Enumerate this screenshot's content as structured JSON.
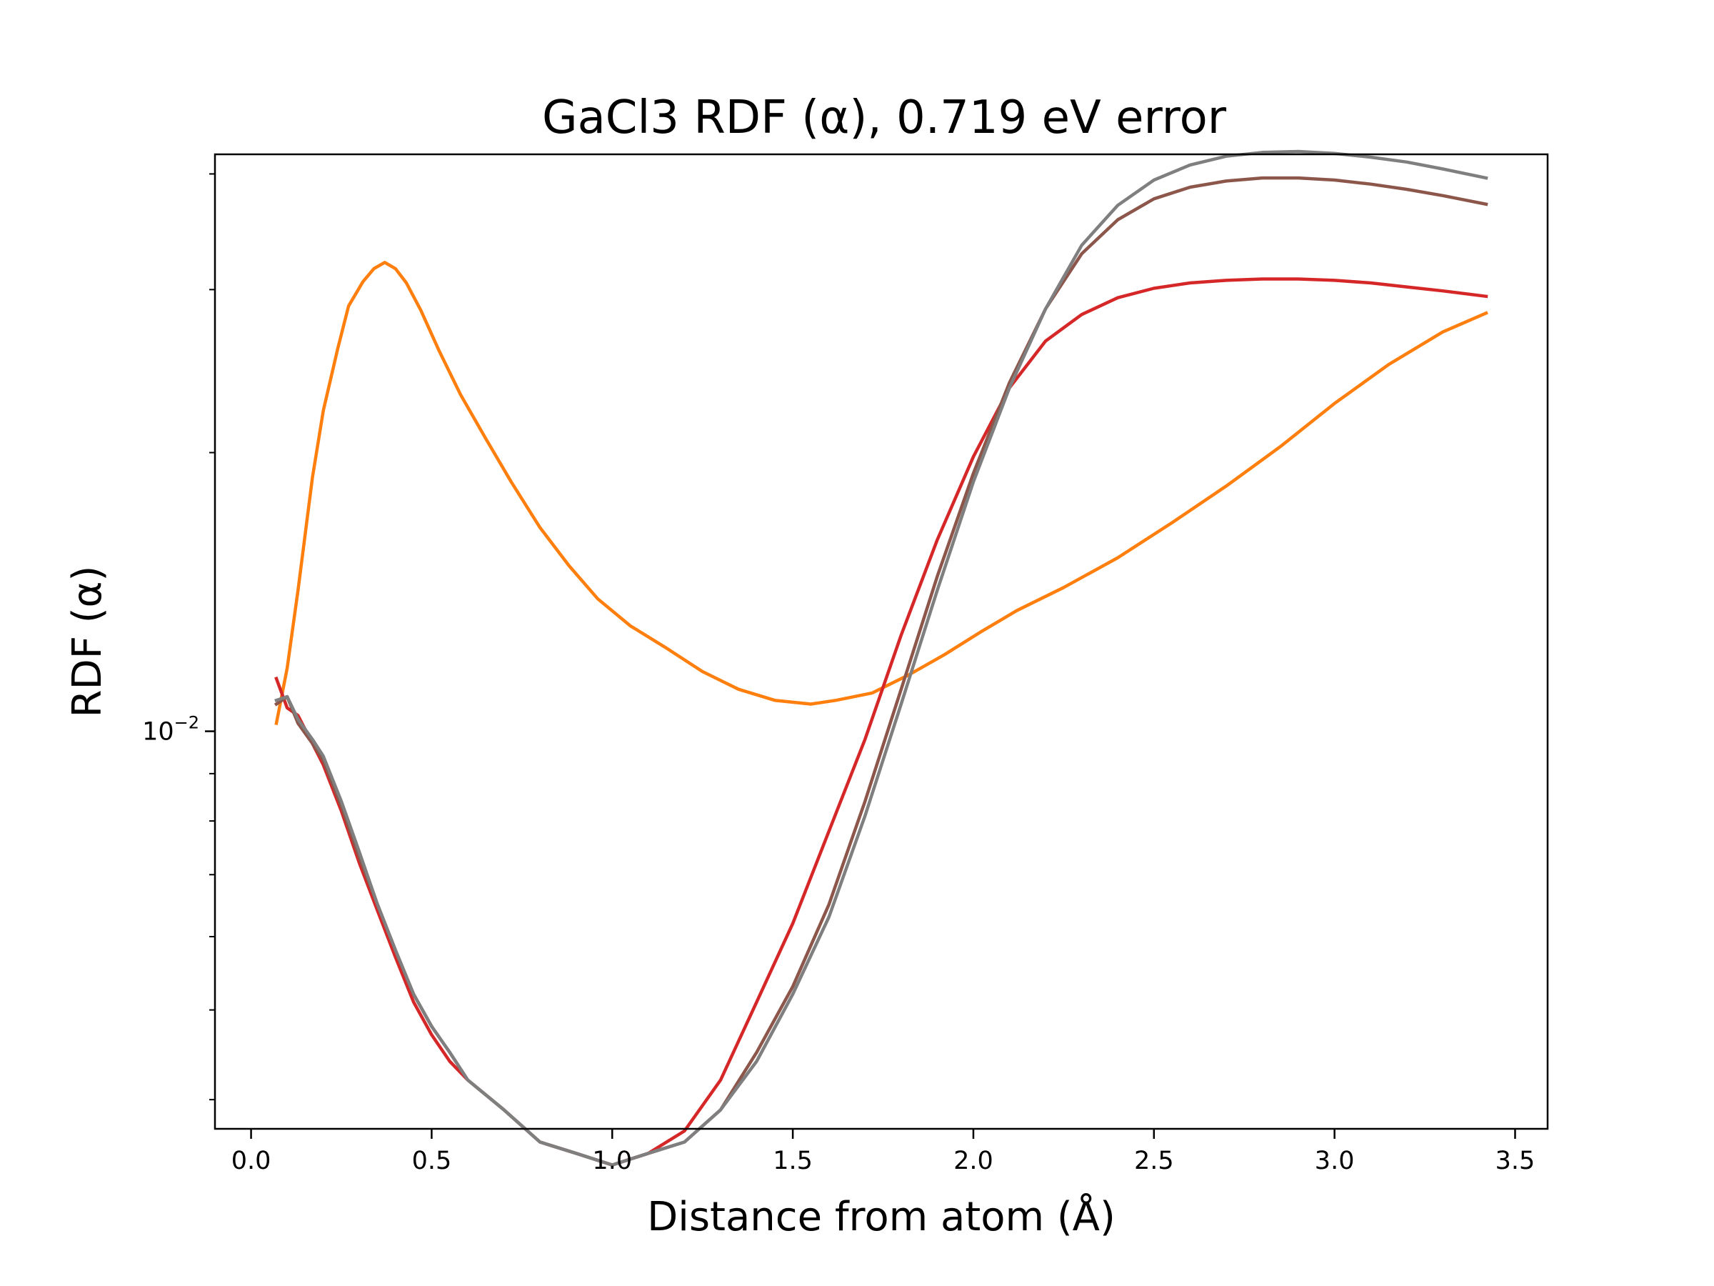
{
  "chart_data": {
    "type": "line",
    "title": "GaCl3 RDF (α), 0.719 eV error",
    "xlabel": "Distance from atom (Å)",
    "ylabel": "RDF (α)",
    "xlim": [
      -0.1,
      3.59
    ],
    "ylim": [
      0.00372,
      0.042
    ],
    "yscale": "log",
    "grid": false,
    "xticks": [
      {
        "value": 0.0,
        "label": "0.0"
      },
      {
        "value": 0.5,
        "label": "0.5"
      },
      {
        "value": 1.0,
        "label": "1.0"
      },
      {
        "value": 1.5,
        "label": "1.5"
      },
      {
        "value": 2.0,
        "label": "2.0"
      },
      {
        "value": 2.5,
        "label": "2.5"
      },
      {
        "value": 3.0,
        "label": "3.0"
      },
      {
        "value": 3.5,
        "label": "3.5"
      }
    ],
    "yticks_major": [
      {
        "value": 0.01,
        "base": "10",
        "exp": "−2"
      }
    ],
    "yticks_minor": [
      0.004,
      0.005,
      0.006,
      0.007,
      0.008,
      0.009,
      0.02,
      0.03,
      0.04
    ],
    "series": [
      {
        "color": "#ff7f0e",
        "x": [
          0.07,
          0.1,
          0.13,
          0.17,
          0.2,
          0.24,
          0.27,
          0.31,
          0.34,
          0.37,
          0.4,
          0.43,
          0.47,
          0.52,
          0.58,
          0.65,
          0.72,
          0.8,
          0.88,
          0.96,
          1.05,
          1.15,
          1.25,
          1.35,
          1.45,
          1.55,
          1.62,
          1.72,
          1.82,
          1.92,
          2.02,
          2.12,
          2.25,
          2.4,
          2.55,
          2.7,
          2.85,
          3.0,
          3.15,
          3.3,
          3.42
        ],
        "y": [
          0.0102,
          0.0117,
          0.0142,
          0.0188,
          0.0222,
          0.0259,
          0.0288,
          0.0306,
          0.0316,
          0.0321,
          0.0316,
          0.0305,
          0.0285,
          0.0258,
          0.0231,
          0.0207,
          0.0186,
          0.0166,
          0.0151,
          0.0139,
          0.013,
          0.0123,
          0.0116,
          0.0111,
          0.0108,
          0.0107,
          0.0108,
          0.011,
          0.0115,
          0.0121,
          0.0128,
          0.0135,
          0.0143,
          0.0154,
          0.0168,
          0.0184,
          0.0203,
          0.0226,
          0.0249,
          0.027,
          0.0283
        ]
      },
      {
        "color": "#d62728",
        "x": [
          0.07,
          0.1,
          0.13,
          0.17,
          0.2,
          0.25,
          0.3,
          0.35,
          0.4,
          0.45,
          0.5,
          0.55,
          0.6,
          0.7,
          0.8,
          0.9,
          1.0,
          1.1,
          1.2,
          1.3,
          1.4,
          1.5,
          1.6,
          1.7,
          1.8,
          1.9,
          2.0,
          2.1,
          2.2,
          2.3,
          2.4,
          2.5,
          2.6,
          2.7,
          2.8,
          2.9,
          3.0,
          3.1,
          3.2,
          3.3,
          3.42
        ],
        "y": [
          0.0114,
          0.0106,
          0.0104,
          0.0097,
          0.0092,
          0.0082,
          0.0072,
          0.0064,
          0.0057,
          0.0051,
          0.0047,
          0.0044,
          0.0042,
          0.0039,
          0.0036,
          0.0035,
          0.0034,
          0.0035,
          0.0037,
          0.0042,
          0.0051,
          0.0062,
          0.0078,
          0.0098,
          0.0127,
          0.0161,
          0.0198,
          0.0235,
          0.0264,
          0.0282,
          0.0294,
          0.0301,
          0.0305,
          0.0307,
          0.0308,
          0.0308,
          0.0307,
          0.0305,
          0.0302,
          0.0299,
          0.0295
        ]
      },
      {
        "color": "#8c564b",
        "x": [
          0.07,
          0.1,
          0.13,
          0.17,
          0.2,
          0.25,
          0.3,
          0.35,
          0.4,
          0.45,
          0.5,
          0.55,
          0.6,
          0.7,
          0.8,
          0.9,
          1.0,
          1.1,
          1.2,
          1.3,
          1.4,
          1.5,
          1.6,
          1.7,
          1.8,
          1.9,
          2.0,
          2.1,
          2.2,
          2.3,
          2.4,
          2.5,
          2.6,
          2.7,
          2.8,
          2.9,
          3.0,
          3.1,
          3.2,
          3.3,
          3.42
        ],
        "y": [
          0.0107,
          0.0109,
          0.0102,
          0.0097,
          0.0093,
          0.0083,
          0.0073,
          0.0065,
          0.0058,
          0.0052,
          0.0048,
          0.0045,
          0.0042,
          0.0039,
          0.0036,
          0.0035,
          0.0034,
          0.0035,
          0.0036,
          0.0039,
          0.0045,
          0.0053,
          0.0065,
          0.0084,
          0.0111,
          0.0147,
          0.019,
          0.0238,
          0.0286,
          0.0328,
          0.0357,
          0.0376,
          0.0387,
          0.0393,
          0.0396,
          0.0396,
          0.0394,
          0.039,
          0.0385,
          0.0379,
          0.0371
        ]
      },
      {
        "color": "#7f7f7f",
        "x": [
          0.07,
          0.1,
          0.13,
          0.17,
          0.2,
          0.25,
          0.3,
          0.35,
          0.4,
          0.45,
          0.5,
          0.55,
          0.6,
          0.7,
          0.8,
          0.9,
          1.0,
          1.1,
          1.2,
          1.3,
          1.4,
          1.5,
          1.6,
          1.7,
          1.8,
          1.9,
          2.0,
          2.1,
          2.2,
          2.3,
          2.4,
          2.5,
          2.6,
          2.7,
          2.8,
          2.9,
          3.0,
          3.1,
          3.2,
          3.3,
          3.42
        ],
        "y": [
          0.0108,
          0.0109,
          0.0103,
          0.0098,
          0.0094,
          0.0084,
          0.0074,
          0.0065,
          0.0058,
          0.0052,
          0.0048,
          0.0045,
          0.0042,
          0.0039,
          0.0036,
          0.0035,
          0.0034,
          0.0035,
          0.0036,
          0.0039,
          0.0044,
          0.0052,
          0.0063,
          0.0081,
          0.0107,
          0.0142,
          0.0186,
          0.0235,
          0.0286,
          0.0335,
          0.037,
          0.0394,
          0.0409,
          0.0418,
          0.0422,
          0.0423,
          0.0421,
          0.0417,
          0.0412,
          0.0405,
          0.0396
        ]
      }
    ]
  }
}
